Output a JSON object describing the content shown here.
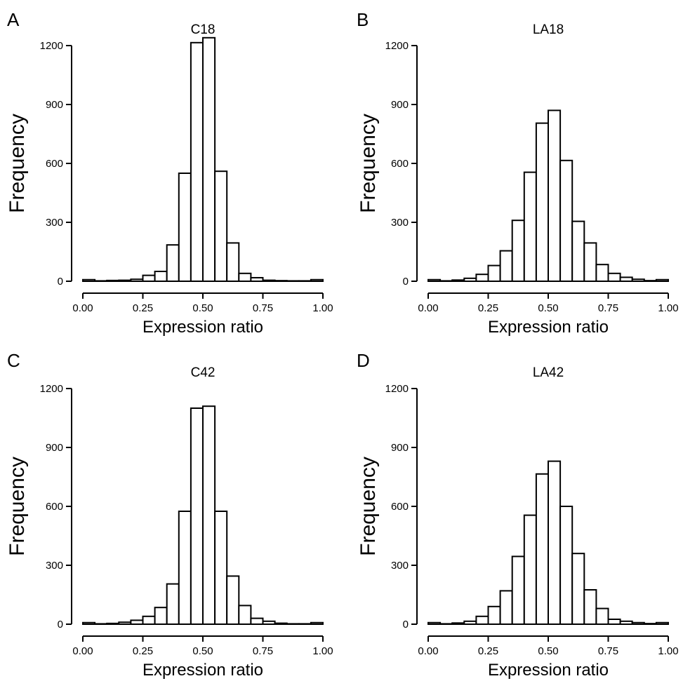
{
  "chart_data": [
    {
      "panel_letter": "A",
      "type": "bar",
      "title": "C18",
      "xlabel": "Expression ratio",
      "ylabel": "Frequency",
      "xlim": [
        0,
        1
      ],
      "ylim": [
        0,
        1200
      ],
      "xticks": [
        "0.00",
        "0.25",
        "0.50",
        "0.75",
        "1.00"
      ],
      "yticks": [
        "0",
        "300",
        "600",
        "900",
        "1200"
      ],
      "bin_width": 0.05,
      "values": [
        8,
        2,
        4,
        5,
        10,
        30,
        50,
        185,
        550,
        1215,
        1240,
        560,
        195,
        40,
        18,
        5,
        3,
        2,
        2,
        8
      ]
    },
    {
      "panel_letter": "B",
      "type": "bar",
      "title": "LA18",
      "xlabel": "Expression ratio",
      "ylabel": "Frequency",
      "xlim": [
        0,
        1
      ],
      "ylim": [
        0,
        1200
      ],
      "xticks": [
        "0.00",
        "0.25",
        "0.50",
        "0.75",
        "1.00"
      ],
      "yticks": [
        "0",
        "300",
        "600",
        "900",
        "1200"
      ],
      "bin_width": 0.05,
      "values": [
        8,
        2,
        6,
        15,
        35,
        80,
        155,
        310,
        555,
        805,
        870,
        615,
        305,
        195,
        85,
        40,
        20,
        10,
        3,
        8
      ]
    },
    {
      "panel_letter": "C",
      "type": "bar",
      "title": "C42",
      "xlabel": "Expression ratio",
      "ylabel": "Frequency",
      "xlim": [
        0,
        1
      ],
      "ylim": [
        0,
        1200
      ],
      "xticks": [
        "0.00",
        "0.25",
        "0.50",
        "0.75",
        "1.00"
      ],
      "yticks": [
        "0",
        "300",
        "600",
        "900",
        "1200"
      ],
      "bin_width": 0.05,
      "values": [
        8,
        2,
        4,
        10,
        20,
        40,
        85,
        205,
        575,
        1100,
        1110,
        575,
        245,
        95,
        30,
        15,
        5,
        2,
        2,
        8
      ]
    },
    {
      "panel_letter": "D",
      "type": "bar",
      "title": "LA42",
      "xlabel": "Expression ratio",
      "ylabel": "Frequency",
      "xlim": [
        0,
        1
      ],
      "ylim": [
        0,
        1200
      ],
      "xticks": [
        "0.00",
        "0.25",
        "0.50",
        "0.75",
        "1.00"
      ],
      "yticks": [
        "0",
        "300",
        "600",
        "900",
        "1200"
      ],
      "bin_width": 0.05,
      "values": [
        8,
        2,
        6,
        15,
        40,
        90,
        170,
        345,
        555,
        765,
        830,
        600,
        360,
        175,
        80,
        25,
        15,
        8,
        3,
        8
      ]
    }
  ]
}
